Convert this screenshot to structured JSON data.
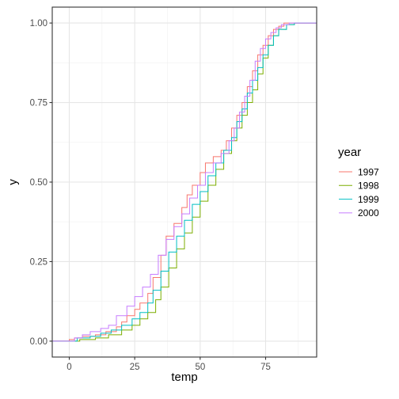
{
  "chart_data": {
    "type": "line",
    "step": "ecdf",
    "xlabel": "temp",
    "ylabel": "y",
    "xlim": [
      -6.5,
      94.5
    ],
    "ylim": [
      -0.05,
      1.05
    ],
    "x_ticks": [
      0,
      25,
      50,
      75
    ],
    "x_tick_labels": [
      "0",
      "25",
      "50",
      "75"
    ],
    "y_ticks": [
      0,
      0.25,
      0.5,
      0.75,
      1
    ],
    "y_tick_labels": [
      "0.00",
      "0.25",
      "0.50",
      "0.75",
      "1.00"
    ],
    "grid": true,
    "legend": {
      "title": "year",
      "position": "right"
    },
    "series": [
      {
        "name": "1997",
        "color": "#F8766D",
        "points": [
          [
            -8,
            0
          ],
          [
            -2,
            0
          ],
          [
            0,
            0.005
          ],
          [
            2,
            0.01
          ],
          [
            5,
            0.015
          ],
          [
            10,
            0.02
          ],
          [
            14,
            0.03
          ],
          [
            18,
            0.045
          ],
          [
            20,
            0.06
          ],
          [
            22,
            0.08
          ],
          [
            25,
            0.1
          ],
          [
            27,
            0.12
          ],
          [
            30,
            0.15
          ],
          [
            32,
            0.2
          ],
          [
            35,
            0.27
          ],
          [
            37,
            0.33
          ],
          [
            40,
            0.37
          ],
          [
            43,
            0.42
          ],
          [
            45,
            0.46
          ],
          [
            47,
            0.49
          ],
          [
            50,
            0.53
          ],
          [
            52,
            0.56
          ],
          [
            55,
            0.58
          ],
          [
            58,
            0.6
          ],
          [
            60,
            0.63
          ],
          [
            62,
            0.67
          ],
          [
            64,
            0.71
          ],
          [
            66,
            0.75
          ],
          [
            68,
            0.8
          ],
          [
            70,
            0.85
          ],
          [
            72,
            0.9
          ],
          [
            74,
            0.93
          ],
          [
            76,
            0.96
          ],
          [
            78,
            0.98
          ],
          [
            80,
            0.99
          ],
          [
            82,
            1.0
          ],
          [
            98,
            1.0
          ]
        ]
      },
      {
        "name": "1998",
        "color": "#7CAE00",
        "points": [
          [
            -8,
            0
          ],
          [
            0,
            0
          ],
          [
            4,
            0.005
          ],
          [
            10,
            0.01
          ],
          [
            15,
            0.02
          ],
          [
            20,
            0.035
          ],
          [
            24,
            0.05
          ],
          [
            27,
            0.07
          ],
          [
            30,
            0.09
          ],
          [
            33,
            0.13
          ],
          [
            35,
            0.17
          ],
          [
            38,
            0.23
          ],
          [
            41,
            0.29
          ],
          [
            44,
            0.34
          ],
          [
            47,
            0.39
          ],
          [
            50,
            0.44
          ],
          [
            53,
            0.49
          ],
          [
            56,
            0.54
          ],
          [
            59,
            0.59
          ],
          [
            62,
            0.63
          ],
          [
            64,
            0.67
          ],
          [
            66,
            0.71
          ],
          [
            68,
            0.75
          ],
          [
            70,
            0.79
          ],
          [
            72,
            0.84
          ],
          [
            74,
            0.89
          ],
          [
            76,
            0.93
          ],
          [
            78,
            0.96
          ],
          [
            80,
            0.98
          ],
          [
            83,
            0.995
          ],
          [
            86,
            1.0
          ],
          [
            98,
            1.0
          ]
        ]
      },
      {
        "name": "1999",
        "color": "#00BFC4",
        "points": [
          [
            -8,
            0
          ],
          [
            0,
            0
          ],
          [
            3,
            0.01
          ],
          [
            8,
            0.015
          ],
          [
            12,
            0.025
          ],
          [
            16,
            0.035
          ],
          [
            20,
            0.05
          ],
          [
            24,
            0.07
          ],
          [
            27,
            0.09
          ],
          [
            30,
            0.12
          ],
          [
            32,
            0.16
          ],
          [
            35,
            0.22
          ],
          [
            38,
            0.28
          ],
          [
            41,
            0.33
          ],
          [
            44,
            0.38
          ],
          [
            47,
            0.43
          ],
          [
            50,
            0.47
          ],
          [
            53,
            0.52
          ],
          [
            56,
            0.56
          ],
          [
            59,
            0.6
          ],
          [
            62,
            0.64
          ],
          [
            64,
            0.69
          ],
          [
            66,
            0.73
          ],
          [
            68,
            0.78
          ],
          [
            70,
            0.82
          ],
          [
            72,
            0.86
          ],
          [
            74,
            0.9
          ],
          [
            76,
            0.93
          ],
          [
            78,
            0.96
          ],
          [
            80,
            0.98
          ],
          [
            83,
            0.995
          ],
          [
            86,
            1.0
          ],
          [
            98,
            1.0
          ]
        ]
      },
      {
        "name": "2000",
        "color": "#C77CFF",
        "points": [
          [
            -8,
            0
          ],
          [
            0,
            0
          ],
          [
            2,
            0.01
          ],
          [
            5,
            0.02
          ],
          [
            8,
            0.03
          ],
          [
            12,
            0.04
          ],
          [
            15,
            0.05
          ],
          [
            18,
            0.08
          ],
          [
            22,
            0.11
          ],
          [
            25,
            0.14
          ],
          [
            28,
            0.17
          ],
          [
            31,
            0.21
          ],
          [
            34,
            0.27
          ],
          [
            37,
            0.32
          ],
          [
            40,
            0.36
          ],
          [
            43,
            0.4
          ],
          [
            46,
            0.45
          ],
          [
            49,
            0.49
          ],
          [
            52,
            0.53
          ],
          [
            55,
            0.56
          ],
          [
            58,
            0.59
          ],
          [
            61,
            0.63
          ],
          [
            63,
            0.67
          ],
          [
            65,
            0.72
          ],
          [
            67,
            0.77
          ],
          [
            69,
            0.82
          ],
          [
            71,
            0.88
          ],
          [
            73,
            0.92
          ],
          [
            75,
            0.95
          ],
          [
            77,
            0.97
          ],
          [
            79,
            0.985
          ],
          [
            81,
            0.995
          ],
          [
            84,
            1.0
          ],
          [
            98,
            1.0
          ]
        ]
      }
    ]
  }
}
